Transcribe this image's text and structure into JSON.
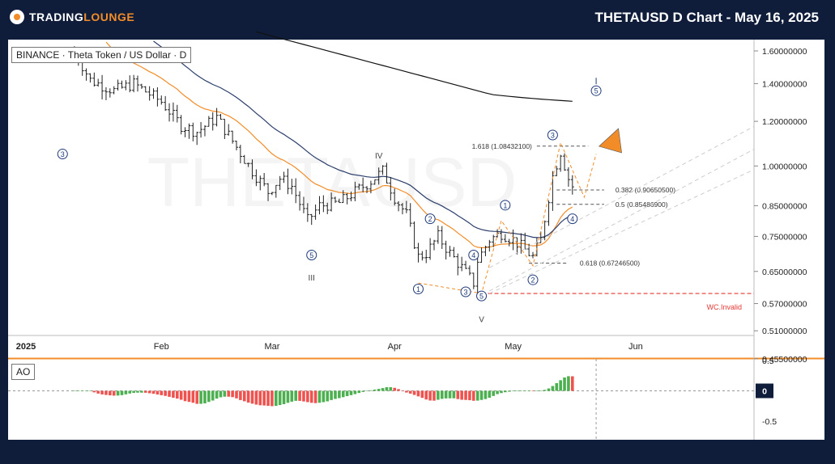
{
  "header": {
    "brand_a": "TRADING",
    "brand_b": "LOUNGE",
    "title": "THETAUSD D Chart - May 16, 2025"
  },
  "legend": {
    "symbol": "BINANCE · Theta Token / US Dollar · D",
    "indicator": "AO"
  },
  "watermark": "THETAUSD",
  "chart_data": {
    "type": "ohlc",
    "y_scale": "log",
    "ylim": [
      0.45,
      1.7
    ],
    "y_ticks": [
      "1.60000000",
      "1.40000000",
      "1.20000000",
      "1.00000000",
      "0.85000000",
      "0.75000000",
      "0.65000000",
      "0.57000000",
      "0.51000000",
      "0.45500000"
    ],
    "y_tick_values": [
      1.6,
      1.4,
      1.2,
      1.0,
      0.85,
      0.75,
      0.65,
      0.57,
      0.51,
      0.455
    ],
    "x_ticks": [
      "2025",
      "Feb",
      "Mar",
      "Apr",
      "May",
      "Jun"
    ],
    "x_tick_dates": [
      "2025-01-01",
      "2025-02-01",
      "2025-03-01",
      "2025-04-01",
      "2025-05-01",
      "2025-06-01"
    ],
    "last_date": "2025-05-16",
    "price_path": [
      [
        "2025-01-10",
        1.6
      ],
      [
        "2025-01-14",
        1.42
      ],
      [
        "2025-01-20",
        1.36
      ],
      [
        "2025-01-25",
        1.4
      ],
      [
        "2025-02-01",
        1.3
      ],
      [
        "2025-02-06",
        1.18
      ],
      [
        "2025-02-10",
        1.15
      ],
      [
        "2025-02-15",
        1.22
      ],
      [
        "2025-02-20",
        1.08
      ],
      [
        "2025-02-24",
        0.98
      ],
      [
        "2025-02-28",
        0.9
      ],
      [
        "2025-03-03",
        0.95
      ],
      [
        "2025-03-06",
        0.92
      ],
      [
        "2025-03-10",
        0.8
      ],
      [
        "2025-03-13",
        0.85
      ],
      [
        "2025-03-18",
        0.86
      ],
      [
        "2025-03-22",
        0.9
      ],
      [
        "2025-03-26",
        0.94
      ],
      [
        "2025-03-29",
        0.98
      ],
      [
        "2025-04-01",
        0.88
      ],
      [
        "2025-04-04",
        0.82
      ],
      [
        "2025-04-07",
        0.69
      ],
      [
        "2025-04-09",
        0.7
      ],
      [
        "2025-04-12",
        0.75
      ],
      [
        "2025-04-15",
        0.7
      ],
      [
        "2025-04-18",
        0.66
      ],
      [
        "2025-04-21",
        0.62
      ],
      [
        "2025-04-22",
        0.68
      ],
      [
        "2025-04-25",
        0.74
      ],
      [
        "2025-04-28",
        0.76
      ],
      [
        "2025-05-01",
        0.74
      ],
      [
        "2025-05-03",
        0.72
      ],
      [
        "2025-05-06",
        0.69
      ],
      [
        "2025-05-08",
        0.74
      ],
      [
        "2025-05-11",
        0.96
      ],
      [
        "2025-05-13",
        1.06
      ],
      [
        "2025-05-15",
        0.95
      ],
      [
        "2025-05-16",
        0.92
      ]
    ],
    "wave_labels": [
      {
        "label": "4",
        "date": "2025-01-27",
        "price": 1.56,
        "circled": true
      },
      {
        "label": "3",
        "date": "2025-01-07",
        "price": 1.05,
        "circled": true
      },
      {
        "label": "5",
        "date": "2025-03-11",
        "price": 0.695,
        "circled": true
      },
      {
        "label": "III",
        "date": "2025-03-11",
        "price": 0.635,
        "circled": false
      },
      {
        "label": "IV",
        "date": "2025-03-28",
        "price": 1.045,
        "circled": false
      },
      {
        "label": "1",
        "date": "2025-04-07",
        "price": 0.605,
        "circled": true
      },
      {
        "label": "2",
        "date": "2025-04-10",
        "price": 0.806,
        "circled": true
      },
      {
        "label": "3",
        "date": "2025-04-19",
        "price": 0.598,
        "circled": true
      },
      {
        "label": "4",
        "date": "2025-04-21",
        "price": 0.695,
        "circled": true
      },
      {
        "label": "5",
        "date": "2025-04-23",
        "price": 0.588,
        "circled": true
      },
      {
        "label": "V",
        "date": "2025-04-23",
        "price": 0.535,
        "circled": false
      },
      {
        "label": "1",
        "date": "2025-04-29",
        "price": 0.852,
        "circled": true
      },
      {
        "label": "2",
        "date": "2025-05-06",
        "price": 0.628,
        "circled": true
      },
      {
        "label": "3",
        "date": "2025-05-11",
        "price": 1.135,
        "circled": true
      },
      {
        "label": "4",
        "date": "2025-05-16",
        "price": 0.806,
        "circled": true
      },
      {
        "label": "5",
        "date": "2025-05-22",
        "price": 1.36,
        "circled": true
      }
    ],
    "fib_levels": [
      {
        "ratio": "1.618",
        "price_text": "(1.08432100)",
        "value": 1.084321
      },
      {
        "ratio": "0.382",
        "price_text": "(0.90650500)",
        "value": 0.906505
      },
      {
        "ratio": "0.5",
        "price_text": "(0.85486900)",
        "value": 0.854869
      },
      {
        "ratio": "0.618",
        "price_text": "(0.67246500)",
        "value": 0.672465
      }
    ],
    "invalidation": {
      "label": "WC.Invalid",
      "value": 0.594
    },
    "ao": {
      "label": "AO",
      "y_ticks": [
        "0.5",
        "0",
        "-0.5"
      ],
      "y_tick_values": [
        0.5,
        0,
        -0.5
      ]
    }
  },
  "colors": {
    "background": "#0f1d3a",
    "bars": "#222222",
    "ema_fast": "#f28c28",
    "ema_slow": "#2c3e6b",
    "ma_long": "#111111",
    "wave_label": "#1f3a7a",
    "invalid": "#e53935",
    "ao_up": "#4caf50",
    "ao_down": "#ef5350",
    "projection": "#f28c28"
  }
}
